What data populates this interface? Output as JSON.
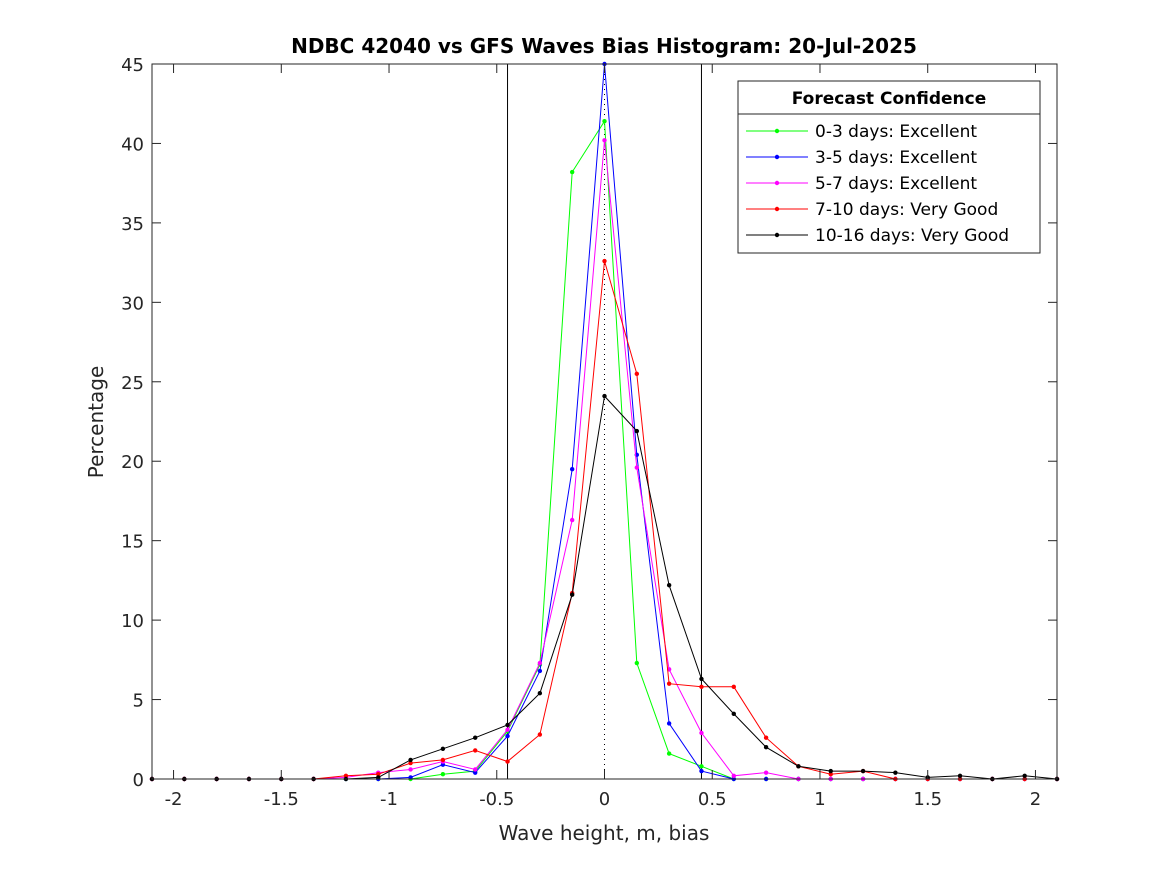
{
  "chart_data": {
    "type": "line",
    "title": "NDBC 42040 vs GFS Waves Bias Histogram: 20-Jul-2025",
    "xlabel": "Wave height, m, bias",
    "ylabel": "Percentage",
    "xlim": [
      -2.1,
      2.1
    ],
    "ylim": [
      0,
      45
    ],
    "xticks": [
      -2,
      -1.5,
      -1,
      -0.5,
      0,
      0.5,
      1,
      1.5,
      2
    ],
    "xtick_labels": [
      "-2",
      "-1.5",
      "-1",
      "-0.5",
      "0",
      "0.5",
      "1",
      "1.5",
      "2"
    ],
    "yticks": [
      0,
      5,
      10,
      15,
      20,
      25,
      30,
      35,
      40,
      45
    ],
    "ytick_labels": [
      "0",
      "5",
      "10",
      "15",
      "20",
      "25",
      "30",
      "35",
      "40",
      "45"
    ],
    "grid": false,
    "legend_title": "Forecast Confidence",
    "legend_position": "top-right",
    "reference_lines": {
      "solid_x": [
        -0.45,
        0.45
      ],
      "dotted_x": [
        0
      ]
    },
    "x": [
      -2.1,
      -1.95,
      -1.8,
      -1.65,
      -1.5,
      -1.35,
      -1.2,
      -1.05,
      -0.9,
      -0.75,
      -0.6,
      -0.45,
      -0.3,
      -0.15,
      0,
      0.15,
      0.3,
      0.45,
      0.6,
      0.75,
      0.9,
      1.05,
      1.2,
      1.35,
      1.5,
      1.65,
      1.8,
      1.95,
      2.1
    ],
    "series": [
      {
        "name": "0-3 days: Excellent",
        "color": "#00ff00",
        "values": [
          0,
          0,
          0,
          0,
          0,
          0,
          0,
          0,
          0,
          0.3,
          0.5,
          3.0,
          7.2,
          38.2,
          41.4,
          7.3,
          1.6,
          0.8,
          0,
          0,
          0,
          0,
          0,
          0,
          0,
          0,
          0,
          0,
          0
        ]
      },
      {
        "name": "3-5 days: Excellent",
        "color": "#0000ff",
        "values": [
          0,
          0,
          0,
          0,
          0,
          0,
          0,
          0,
          0.1,
          0.9,
          0.4,
          2.7,
          6.8,
          19.5,
          45.0,
          20.4,
          3.5,
          0.5,
          0,
          0,
          0,
          0,
          0,
          0,
          0,
          0,
          0,
          0,
          0
        ]
      },
      {
        "name": "5-7 days: Excellent",
        "color": "#ff00ff",
        "values": [
          0,
          0,
          0,
          0,
          0,
          0,
          0.1,
          0.4,
          0.6,
          1.1,
          0.6,
          3.1,
          7.3,
          16.3,
          40.2,
          19.6,
          6.9,
          2.9,
          0.2,
          0.4,
          0,
          0,
          0,
          0,
          0,
          0,
          0,
          0,
          0
        ]
      },
      {
        "name": "7-10 days: Very Good",
        "color": "#ff0000",
        "values": [
          0,
          0,
          0,
          0,
          0,
          0,
          0.2,
          0.3,
          1.0,
          1.2,
          1.8,
          1.1,
          2.8,
          11.7,
          32.6,
          25.5,
          6.0,
          5.8,
          5.8,
          2.6,
          0.8,
          0.3,
          0.5,
          0,
          0,
          0,
          0,
          0,
          0
        ]
      },
      {
        "name": "10-16 days: Very Good",
        "color": "#000000",
        "values": [
          0,
          0,
          0,
          0,
          0,
          0,
          0,
          0.1,
          1.2,
          1.9,
          2.6,
          3.4,
          5.4,
          11.6,
          24.1,
          21.9,
          12.2,
          6.3,
          4.1,
          2.0,
          0.8,
          0.5,
          0.5,
          0.4,
          0.1,
          0.2,
          0,
          0.2,
          0
        ]
      }
    ]
  }
}
